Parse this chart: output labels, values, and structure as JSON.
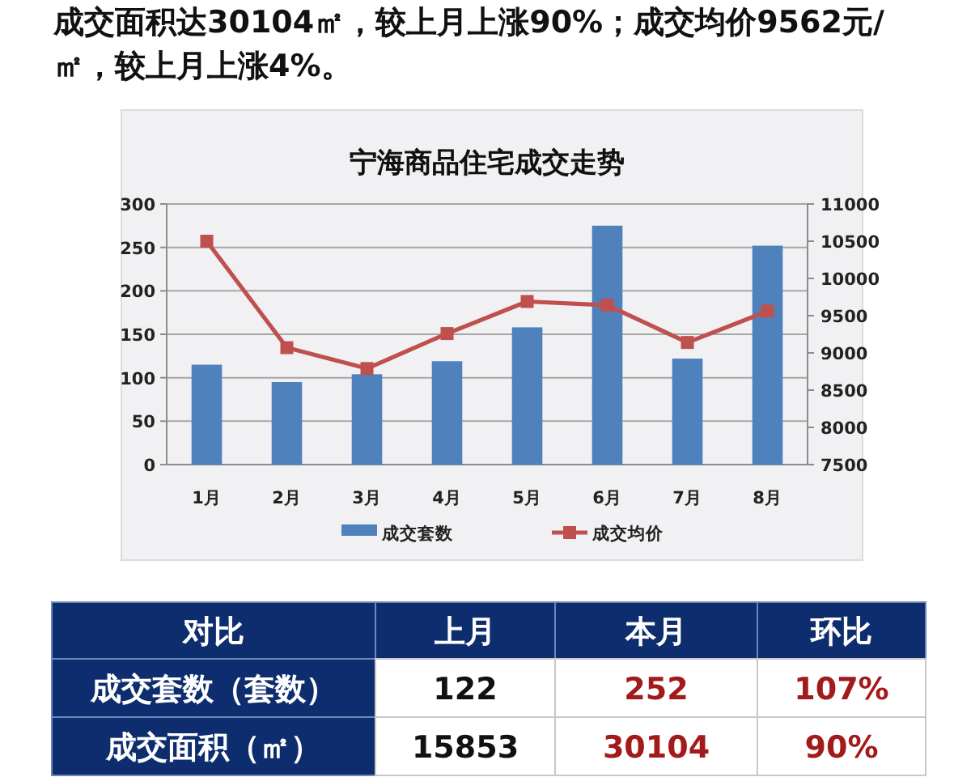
{
  "chart_data": [
    {
      "type": "bar",
      "title": "宁海商品住宅成交走势",
      "annotations": [
        "成交面积达30104㎡，较上月上涨90%；成交均价9562元/㎡，较上月上涨4%。"
      ],
      "categories": [
        "1月",
        "2月",
        "3月",
        "4月",
        "5月",
        "6月",
        "7月",
        "8月"
      ],
      "series": [
        {
          "name": "成交套数",
          "type": "bar",
          "color": "#4f81bd",
          "values": [
            115,
            95,
            104,
            119,
            158,
            275,
            122,
            252
          ]
        },
        {
          "name": "成交均价",
          "type": "line",
          "axis": "y2",
          "color": "#c0504d",
          "marker": "square",
          "values": [
            10500,
            9070,
            8790,
            9260,
            9690,
            9640,
            9140,
            9560
          ]
        }
      ],
      "ylim": [
        0,
        300
      ],
      "yticks": [
        0,
        50,
        100,
        150,
        200,
        250,
        300
      ],
      "y2lim": [
        7500,
        11000
      ],
      "y2ticks": [
        7500,
        8000,
        8500,
        9000,
        9500,
        10000,
        10500,
        11000
      ],
      "grid": "y",
      "legend": "bottom"
    },
    {
      "type": "other",
      "annotations": [
        "对比",
        "上月",
        "本月",
        "环比",
        "成交套数（套数）",
        "122",
        "252",
        "107%",
        "成交面积（㎡）",
        "15853",
        "30104",
        "90%"
      ]
    }
  ]
}
